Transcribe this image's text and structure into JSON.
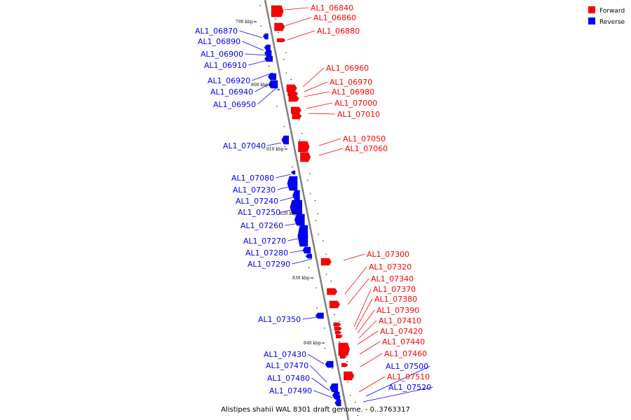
{
  "title": "Alistipes shahii WAL 8301 draft genome. - 0..3763317",
  "legend": [
    {
      "label": "Forward",
      "color": "#ff0000"
    },
    {
      "label": "Reverse",
      "color": "#0000ff"
    }
  ],
  "colors": {
    "forward": "#ff0000",
    "reverse": "#0000ff",
    "axis": "#808080"
  },
  "scale_labels": [
    "790 kbp",
    "800 kbp",
    "810 kbp",
    "820 kbp",
    "830 kbp",
    "840 kbp"
  ],
  "genes": [
    {
      "id": "AL1_06840",
      "strand": "forward"
    },
    {
      "id": "AL1_06860",
      "strand": "forward"
    },
    {
      "id": "AL1_06880",
      "strand": "forward"
    },
    {
      "id": "AL1_06870",
      "strand": "reverse"
    },
    {
      "id": "AL1_06890",
      "strand": "reverse"
    },
    {
      "id": "AL1_06900",
      "strand": "reverse"
    },
    {
      "id": "AL1_06910",
      "strand": "reverse"
    },
    {
      "id": "AL1_06920",
      "strand": "reverse"
    },
    {
      "id": "AL1_06940",
      "strand": "reverse"
    },
    {
      "id": "AL1_06950",
      "strand": "reverse"
    },
    {
      "id": "AL1_06960",
      "strand": "forward"
    },
    {
      "id": "AL1_06970",
      "strand": "forward"
    },
    {
      "id": "AL1_06980",
      "strand": "forward"
    },
    {
      "id": "AL1_07000",
      "strand": "forward"
    },
    {
      "id": "AL1_07010",
      "strand": "forward"
    },
    {
      "id": "AL1_07050",
      "strand": "forward"
    },
    {
      "id": "AL1_07060",
      "strand": "forward"
    },
    {
      "id": "AL1_07040",
      "strand": "reverse"
    },
    {
      "id": "AL1_07080",
      "strand": "reverse"
    },
    {
      "id": "AL1_07230",
      "strand": "reverse"
    },
    {
      "id": "AL1_07240",
      "strand": "reverse"
    },
    {
      "id": "AL1_07250",
      "strand": "reverse"
    },
    {
      "id": "AL1_07260",
      "strand": "reverse"
    },
    {
      "id": "AL1_07270",
      "strand": "reverse"
    },
    {
      "id": "AL1_07280",
      "strand": "reverse"
    },
    {
      "id": "AL1_07290",
      "strand": "reverse"
    },
    {
      "id": "AL1_07300",
      "strand": "forward"
    },
    {
      "id": "AL1_07320",
      "strand": "forward"
    },
    {
      "id": "AL1_07340",
      "strand": "forward"
    },
    {
      "id": "AL1_07370",
      "strand": "forward"
    },
    {
      "id": "AL1_07380",
      "strand": "forward"
    },
    {
      "id": "AL1_07390",
      "strand": "forward"
    },
    {
      "id": "AL1_07410",
      "strand": "forward"
    },
    {
      "id": "AL1_07420",
      "strand": "forward"
    },
    {
      "id": "AL1_07440",
      "strand": "forward"
    },
    {
      "id": "AL1_07460",
      "strand": "forward"
    },
    {
      "id": "AL1_07350",
      "strand": "reverse"
    },
    {
      "id": "AL1_07430",
      "strand": "reverse"
    },
    {
      "id": "AL1_07470",
      "strand": "reverse"
    },
    {
      "id": "AL1_07480",
      "strand": "reverse"
    },
    {
      "id": "AL1_07490",
      "strand": "reverse"
    },
    {
      "id": "AL1_07500",
      "strand": "reverse"
    },
    {
      "id": "AL1_07510",
      "strand": "forward"
    },
    {
      "id": "AL1_07520",
      "strand": "reverse"
    }
  ]
}
